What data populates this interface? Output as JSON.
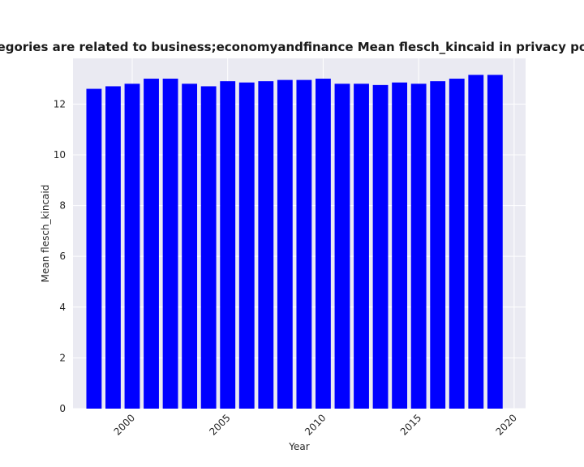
{
  "chart_data": {
    "type": "bar",
    "title": "categories are related to business;economyandfinance Mean flesch_kincaid in privacy policies",
    "xlabel": "Year",
    "ylabel": "Mean flesch_kincaid",
    "x": [
      1998,
      1999,
      2000,
      2001,
      2002,
      2003,
      2004,
      2005,
      2006,
      2007,
      2008,
      2009,
      2010,
      2011,
      2012,
      2013,
      2014,
      2015,
      2016,
      2017,
      2018,
      2019
    ],
    "values": [
      12.6,
      12.7,
      12.8,
      13.0,
      13.0,
      12.8,
      12.7,
      12.9,
      12.85,
      12.9,
      12.95,
      12.95,
      13.0,
      12.8,
      12.8,
      12.75,
      12.85,
      12.8,
      12.9,
      13.0,
      13.15,
      13.15
    ],
    "xlim": [
      1996.9,
      2020.6
    ],
    "ylim": [
      0,
      13.8
    ],
    "xticks": [
      2000,
      2005,
      2010,
      2015,
      2020
    ],
    "yticks": [
      0,
      2,
      4,
      6,
      8,
      10,
      12
    ],
    "grid": true,
    "bar_color": "#0000ff",
    "background_color": "#eaeaf2",
    "grid_color": "#ffffff"
  }
}
